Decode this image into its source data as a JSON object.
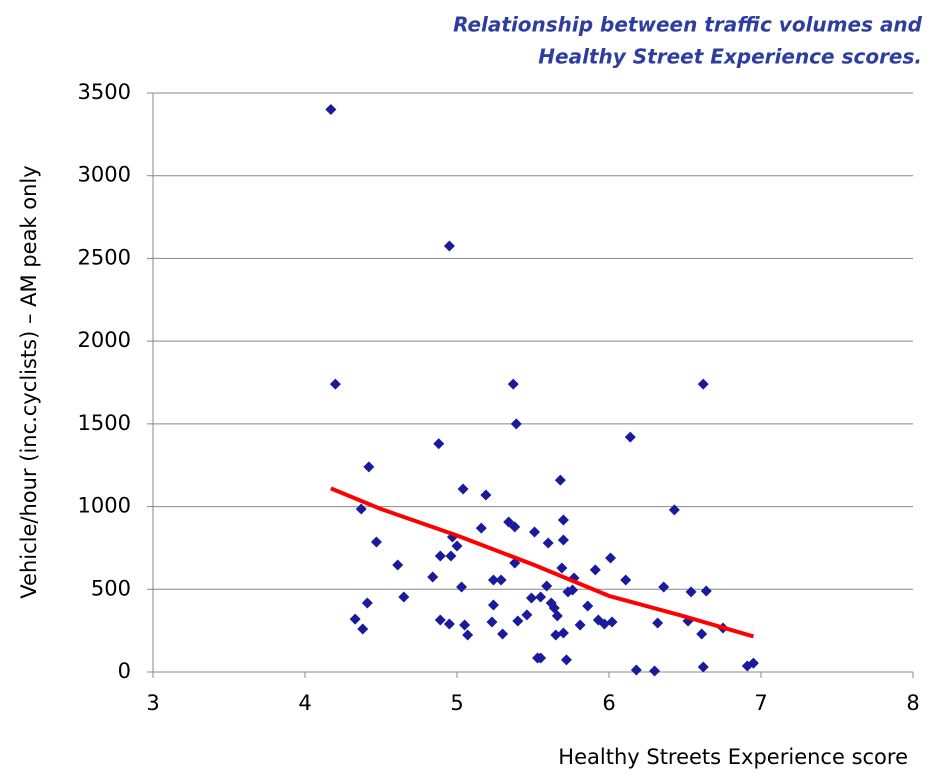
{
  "chart_data": {
    "type": "scatter",
    "title": [
      "Relationship between traffic volumes and",
      "Healthy Street Experience scores."
    ],
    "x_label": "Healthy Streets Experience score",
    "y_label": "Vehicle/hour (inc.cyclists) – AM peak only",
    "xlim": [
      3,
      8
    ],
    "xticks": [
      3,
      4,
      5,
      6,
      7,
      8
    ],
    "ylim": [
      0,
      3500
    ],
    "yticks": [
      0,
      500,
      1000,
      1500,
      2000,
      2500,
      3000,
      3500
    ],
    "grid": true,
    "points": {
      "color": "#1a1a9c",
      "x": [
        4.17,
        4.2,
        4.95,
        5.39,
        4.88,
        5.37,
        6.62,
        6.14,
        4.42,
        5.04,
        5.19,
        6.43,
        4.37,
        5.68,
        4.47,
        5.7,
        5.34,
        5.38,
        5.16,
        5.51,
        4.97,
        5.7,
        5.0,
        5.6,
        4.89,
        4.96,
        6.01,
        4.61,
        5.38,
        5.91,
        5.69,
        4.84,
        5.77,
        5.24,
        5.29,
        6.11,
        5.03,
        5.59,
        5.73,
        5.76,
        6.36,
        6.54,
        6.64,
        4.41,
        4.65,
        5.55,
        5.49,
        5.62,
        5.64,
        5.86,
        5.24,
        5.46,
        5.66,
        5.93,
        5.97,
        6.02,
        5.4,
        5.23,
        4.33,
        4.38,
        4.89,
        4.95,
        5.05,
        5.07,
        5.3,
        5.65,
        5.7,
        5.81,
        6.32,
        6.52,
        6.75,
        6.61,
        5.53,
        5.55,
        5.72,
        6.18,
        6.3,
        6.62,
        6.91,
        6.95
      ],
      "y": [
        3400,
        1740,
        2575,
        1500,
        1380,
        1740,
        1740,
        1420,
        1240,
        1106,
        1070,
        980,
        985,
        1160,
        786,
        919,
        907,
        877,
        870,
        846,
        816,
        798,
        762,
        780,
        701,
        701,
        689,
        647,
        659,
        617,
        629,
        574,
        568,
        556,
        556,
        556,
        514,
        520,
        484,
        496,
        514,
        484,
        490,
        417,
        453,
        453,
        447,
        417,
        387,
        399,
        405,
        345,
        339,
        314,
        290,
        302,
        308,
        302,
        320,
        260,
        314,
        290,
        284,
        224,
        230,
        224,
        236,
        284,
        296,
        308,
        266,
        230,
        85,
        85,
        73,
        12,
        6,
        30,
        36,
        54
      ]
    },
    "trend": {
      "color": "#ff0000",
      "x": [
        4.17,
        4.5,
        5,
        5.5,
        6,
        6.5,
        6.95
      ],
      "y": [
        1110,
        985,
        825,
        650,
        460,
        335,
        215
      ]
    }
  }
}
